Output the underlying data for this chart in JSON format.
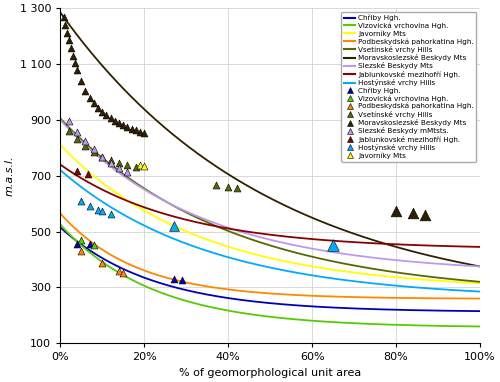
{
  "xlabel": "% of geomorphological unit area",
  "ylabel": "m.a.s.l.",
  "xlim": [
    0,
    1.0
  ],
  "ylim": [
    100,
    1300
  ],
  "yticks": [
    100,
    300,
    500,
    700,
    900,
    1100,
    1300
  ],
  "ytick_labels": [
    "100",
    "300",
    "500",
    "700",
    "900",
    "1 100",
    "1 300"
  ],
  "xticks": [
    0,
    0.2,
    0.4,
    0.6,
    0.8,
    1.0
  ],
  "xtick_labels": [
    "0%",
    "20%",
    "40%",
    "60%",
    "80%",
    "100%"
  ],
  "curves": [
    {
      "name": "Chřiby Hgh.",
      "color": "#0000bb",
      "y0": 515,
      "y100": 215,
      "k": 4.5
    },
    {
      "name": "Vizovická vrchovina Hgh.",
      "color": "#55cc00",
      "y0": 525,
      "y100": 160,
      "k": 4.5
    },
    {
      "name": "Javorníky Mts",
      "color": "#ffff00",
      "y0": 810,
      "y100": 315,
      "k": 3.0
    },
    {
      "name": "Podbeskydská pahorkatina Hgh.",
      "color": "#ff8800",
      "y0": 565,
      "y100": 260,
      "k": 5.5
    },
    {
      "name": "Vsetínské vrchy Hills",
      "color": "#556b00",
      "y0": 905,
      "y100": 320,
      "k": 2.5
    },
    {
      "name": "Moravskoslezské Beskydy Mts",
      "color": "#302000",
      "y0": 1285,
      "y100": 375,
      "k": 2.0
    },
    {
      "name": "Slezské Beskydy Mts",
      "color": "#bb99ee",
      "y0": 900,
      "y100": 375,
      "k": 3.0
    },
    {
      "name": "Jablunkovské mezihofří Hgh.",
      "color": "#880000",
      "y0": 740,
      "y100": 445,
      "k": 3.5
    },
    {
      "name": "Hostýnské vrchy Hills",
      "color": "#00aaff",
      "y0": 720,
      "y100": 285,
      "k": 2.8
    }
  ],
  "cave_groups": [
    {
      "name": "Chřiby Hgh.",
      "color": "#0000bb",
      "edgecolor": "#0000bb",
      "points": [
        [
          0.04,
          455
        ],
        [
          0.07,
          455
        ],
        [
          0.27,
          330
        ],
        [
          0.29,
          328
        ]
      ],
      "sizes": [
        25,
        25,
        25,
        25
      ]
    },
    {
      "name": "Vizovická vrchovina Hgh.",
      "color": "#55cc00",
      "edgecolor": "#55cc00",
      "points": [
        [
          0.05,
          468
        ],
        [
          0.08,
          452
        ]
      ],
      "sizes": [
        25,
        25
      ]
    },
    {
      "name": "Podbeskydská pahorkatina Hgh.",
      "color": "#ff8800",
      "edgecolor": "#ff8800",
      "points": [
        [
          0.05,
          432
        ],
        [
          0.1,
          388
        ],
        [
          0.14,
          358
        ],
        [
          0.15,
          352
        ]
      ],
      "sizes": [
        25,
        25,
        25,
        25
      ]
    },
    {
      "name": "Vsetínské vrchy Hills",
      "color": "#556b00",
      "edgecolor": "#556b00",
      "points": [
        [
          0.02,
          860
        ],
        [
          0.04,
          830
        ],
        [
          0.06,
          805
        ],
        [
          0.08,
          785
        ],
        [
          0.1,
          768
        ],
        [
          0.12,
          755
        ],
        [
          0.14,
          745
        ],
        [
          0.16,
          738
        ],
        [
          0.18,
          730
        ],
        [
          0.37,
          668
        ],
        [
          0.4,
          660
        ],
        [
          0.42,
          655
        ]
      ],
      "sizes": [
        25,
        25,
        25,
        25,
        25,
        25,
        25,
        25,
        25,
        25,
        25,
        25
      ]
    },
    {
      "name": "Moravskoslezské Beskydy Mts",
      "color": "#302000",
      "edgecolor": "#302000",
      "points": [
        [
          0.008,
          1270
        ],
        [
          0.012,
          1240
        ],
        [
          0.016,
          1210
        ],
        [
          0.02,
          1185
        ],
        [
          0.025,
          1158
        ],
        [
          0.03,
          1130
        ],
        [
          0.035,
          1105
        ],
        [
          0.04,
          1080
        ],
        [
          0.05,
          1040
        ],
        [
          0.06,
          1005
        ],
        [
          0.07,
          980
        ],
        [
          0.08,
          960
        ],
        [
          0.09,
          943
        ],
        [
          0.1,
          928
        ],
        [
          0.11,
          916
        ],
        [
          0.12,
          905
        ],
        [
          0.13,
          895
        ],
        [
          0.14,
          887
        ],
        [
          0.15,
          880
        ],
        [
          0.16,
          874
        ],
        [
          0.17,
          868
        ],
        [
          0.18,
          863
        ],
        [
          0.19,
          858
        ],
        [
          0.2,
          854
        ],
        [
          0.8,
          575
        ],
        [
          0.84,
          568
        ],
        [
          0.87,
          560
        ]
      ],
      "sizes": [
        25,
        25,
        25,
        25,
        25,
        25,
        25,
        25,
        25,
        25,
        25,
        25,
        25,
        25,
        25,
        25,
        25,
        25,
        25,
        25,
        25,
        25,
        25,
        25,
        60,
        60,
        60
      ]
    },
    {
      "name": "Slezské Beskydy mMtsts.",
      "color": "#bb99ee",
      "edgecolor": "#bb99ee",
      "points": [
        [
          0.02,
          895
        ],
        [
          0.04,
          858
        ],
        [
          0.06,
          825
        ],
        [
          0.08,
          795
        ],
        [
          0.1,
          768
        ],
        [
          0.12,
          745
        ],
        [
          0.14,
          727
        ],
        [
          0.16,
          712
        ]
      ],
      "sizes": [
        25,
        25,
        25,
        25,
        25,
        25,
        25,
        25
      ]
    },
    {
      "name": "Jablunkovské mezihofří Hgh.",
      "color": "#880000",
      "edgecolor": "#880000",
      "points": [
        [
          0.04,
          718
        ],
        [
          0.065,
          705
        ]
      ],
      "sizes": [
        25,
        25
      ]
    },
    {
      "name": "Hostýnské vrchy Hills",
      "color": "#00aaff",
      "edgecolor": "#00aaff",
      "points": [
        [
          0.05,
          610
        ],
        [
          0.07,
          592
        ],
        [
          0.09,
          578
        ],
        [
          0.1,
          572
        ],
        [
          0.12,
          562
        ],
        [
          0.27,
          520
        ],
        [
          0.65,
          452
        ]
      ],
      "sizes": [
        25,
        25,
        25,
        25,
        25,
        50,
        70
      ]
    },
    {
      "name": "Javorníky Mts",
      "color": "#ffff00",
      "edgecolor": "#cccc00",
      "points": [
        [
          0.19,
          740
        ],
        [
          0.2,
          736
        ]
      ],
      "sizes": [
        25,
        25
      ]
    }
  ],
  "line_legend": [
    {
      "name": "Chřiby Hgh.",
      "color": "#0000bb"
    },
    {
      "name": "Vizovická vrchovina Hgh.",
      "color": "#55cc00"
    },
    {
      "name": "Javorníky Mts",
      "color": "#ffff00"
    },
    {
      "name": "Podbeskydská pahorkatina Hgh.",
      "color": "#ff8800"
    },
    {
      "name": "Vsetínské vrchy Hills",
      "color": "#556b00"
    },
    {
      "name": "Moravskoslezské Beskydy Mts",
      "color": "#302000"
    },
    {
      "name": "Slezské Beskydy Mts",
      "color": "#bb99ee"
    },
    {
      "name": "Jablunkovské mezihofří Hgh.",
      "color": "#880000"
    },
    {
      "name": "Hostýnské vrchy Hills",
      "color": "#00aaff"
    }
  ],
  "tri_legend": [
    {
      "name": "Chřiby Hgh.",
      "color": "#0000bb"
    },
    {
      "name": "Vizovická vrchovina Hgh.",
      "color": "#55cc00"
    },
    {
      "name": "Podbeskydská pahorkatina Hgh.",
      "color": "#ff8800"
    },
    {
      "name": "Vsetínské vrchy Hills",
      "color": "#556b00"
    },
    {
      "name": "Moravskoslezské Beskydy Mts",
      "color": "#302000"
    },
    {
      "name": "Slezské Beskydy mMtsts.",
      "color": "#bb99ee"
    },
    {
      "name": "Jablunkovské mezihofří Hgh.",
      "color": "#880000"
    },
    {
      "name": "Hostýnské vrchy Hills",
      "color": "#00aaff"
    },
    {
      "name": "Javorníky Mts",
      "color": "#ffff00"
    }
  ]
}
